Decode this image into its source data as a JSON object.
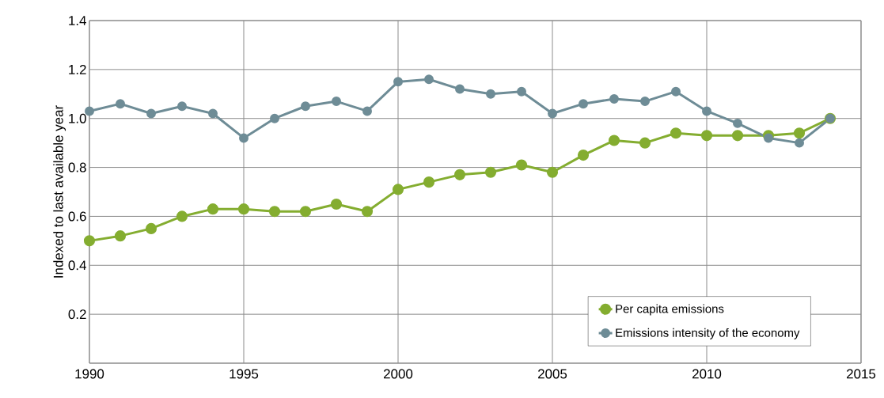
{
  "chart_data": {
    "type": "line",
    "ylabel": "Indexed to last available year",
    "x": [
      1990,
      1991,
      1992,
      1993,
      1994,
      1995,
      1996,
      1997,
      1998,
      1999,
      2000,
      2001,
      2002,
      2003,
      2004,
      2005,
      2006,
      2007,
      2008,
      2009,
      2010,
      2011,
      2012,
      2013,
      2014
    ],
    "series": [
      {
        "name": "Per capita emissions",
        "color": "#84ad30",
        "values": [
          0.5,
          0.52,
          0.55,
          0.6,
          0.63,
          0.63,
          0.62,
          0.62,
          0.65,
          0.62,
          0.71,
          0.74,
          0.77,
          0.78,
          0.81,
          0.78,
          0.85,
          0.91,
          0.9,
          0.94,
          0.93,
          0.93,
          0.93,
          0.94,
          1.0
        ]
      },
      {
        "name": "Emissions intensity of the economy",
        "color": "#6e8c96",
        "values": [
          1.03,
          1.06,
          1.02,
          1.05,
          1.02,
          0.92,
          1.0,
          1.05,
          1.07,
          1.03,
          1.15,
          1.16,
          1.12,
          1.1,
          1.11,
          1.02,
          1.06,
          1.08,
          1.07,
          1.11,
          1.03,
          0.98,
          0.92,
          0.9,
          1.0
        ]
      }
    ],
    "xlim": [
      1990,
      2015
    ],
    "xticks": [
      1990,
      1995,
      2000,
      2005,
      2010,
      2015
    ],
    "ylim": [
      0,
      1.4
    ],
    "yticks": [
      {
        "value": 0,
        "label": null
      },
      0.2,
      0.4,
      0.6,
      0.8,
      {
        "value": 1.0,
        "label": "1.0"
      },
      1.2,
      1.4
    ],
    "grid": true,
    "legend": "bottom right",
    "marker": "circle",
    "line_style": "solid"
  }
}
